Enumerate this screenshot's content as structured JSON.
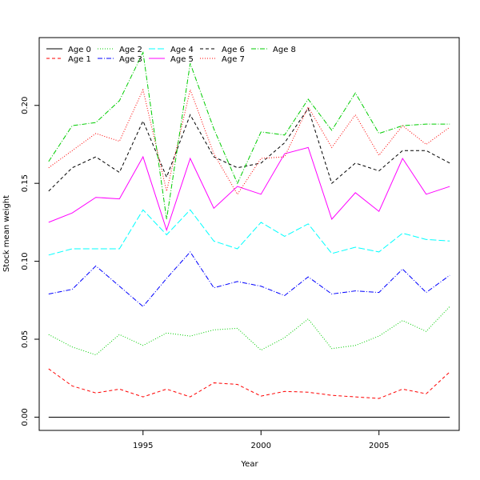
{
  "chart_data": {
    "type": "line",
    "title": "",
    "xlabel": "Year",
    "ylabel": "Stock mean weight",
    "xlim": [
      1990.6,
      2008.4
    ],
    "ylim": [
      -0.0085,
      0.2435
    ],
    "x_ticks": [
      {
        "value": 1995,
        "label": "1995"
      },
      {
        "value": 2000,
        "label": "2000"
      },
      {
        "value": 2005,
        "label": "2005"
      }
    ],
    "y_ticks": [
      {
        "value": 0.0,
        "label": "0.00"
      },
      {
        "value": 0.05,
        "label": "0.05"
      },
      {
        "value": 0.1,
        "label": "0.10"
      },
      {
        "value": 0.15,
        "label": "0.15"
      },
      {
        "value": 0.2,
        "label": "0.20"
      }
    ],
    "grid": false,
    "legend_position": "top-left",
    "x": [
      1991,
      1992,
      1993,
      1994,
      1995,
      1996,
      1997,
      1998,
      1999,
      2000,
      2001,
      2002,
      2003,
      2004,
      2005,
      2006,
      2007,
      2008
    ],
    "series": [
      {
        "name": "Age 0",
        "color": "#000000",
        "dash": "solid",
        "values": [
          0,
          0,
          0,
          0,
          0,
          0,
          0,
          0,
          0,
          0,
          0,
          0,
          0,
          0,
          0,
          0,
          0,
          0
        ]
      },
      {
        "name": "Age 1",
        "color": "#ff0000",
        "dash": "4,3",
        "values": [
          0.031,
          0.02,
          0.0155,
          0.018,
          0.013,
          0.018,
          0.013,
          0.022,
          0.021,
          0.0135,
          0.0165,
          0.016,
          0.014,
          0.013,
          0.012,
          0.018,
          0.015,
          0.029
        ]
      },
      {
        "name": "Age 2",
        "color": "#00cd00",
        "dash": "1,2",
        "values": [
          0.053,
          0.045,
          0.04,
          0.053,
          0.046,
          0.054,
          0.052,
          0.056,
          0.057,
          0.043,
          0.051,
          0.063,
          0.044,
          0.046,
          0.052,
          0.062,
          0.055,
          0.071
        ]
      },
      {
        "name": "Age 3",
        "color": "#0000ff",
        "dash": "6,2,1,2",
        "values": [
          0.079,
          0.082,
          0.097,
          0.084,
          0.071,
          0.089,
          0.106,
          0.083,
          0.087,
          0.084,
          0.078,
          0.09,
          0.079,
          0.081,
          0.08,
          0.095,
          0.08,
          0.091
        ]
      },
      {
        "name": "Age 4",
        "color": "#00ffff",
        "dash": "8,3",
        "values": [
          0.104,
          0.108,
          0.108,
          0.108,
          0.133,
          0.117,
          0.133,
          0.113,
          0.108,
          0.125,
          0.116,
          0.124,
          0.105,
          0.109,
          0.106,
          0.118,
          0.114,
          0.113
        ]
      },
      {
        "name": "Age 5",
        "color": "#ff00ff",
        "dash": "solid",
        "values": [
          0.125,
          0.131,
          0.141,
          0.14,
          0.167,
          0.12,
          0.166,
          0.134,
          0.148,
          0.143,
          0.169,
          0.173,
          0.127,
          0.144,
          0.132,
          0.166,
          0.143,
          0.148
        ]
      },
      {
        "name": "Age 6",
        "color": "#000000",
        "dash": "4,3",
        "values": [
          0.145,
          0.16,
          0.167,
          0.157,
          0.19,
          0.154,
          0.194,
          0.167,
          0.16,
          0.163,
          0.176,
          0.198,
          0.15,
          0.163,
          0.158,
          0.171,
          0.171,
          0.163
        ]
      },
      {
        "name": "Age 7",
        "color": "#ff0000",
        "dash": "1,2",
        "values": [
          0.16,
          0.171,
          0.182,
          0.177,
          0.21,
          0.145,
          0.21,
          0.169,
          0.143,
          0.166,
          0.167,
          0.199,
          0.173,
          0.194,
          0.168,
          0.187,
          0.175,
          0.186
        ]
      },
      {
        "name": "Age 8",
        "color": "#00cd00",
        "dash": "6,2,1,2",
        "values": [
          0.164,
          0.187,
          0.189,
          0.203,
          0.234,
          0.127,
          0.227,
          0.185,
          0.15,
          0.183,
          0.181,
          0.204,
          0.184,
          0.208,
          0.182,
          0.187,
          0.188,
          0.188
        ]
      }
    ]
  }
}
